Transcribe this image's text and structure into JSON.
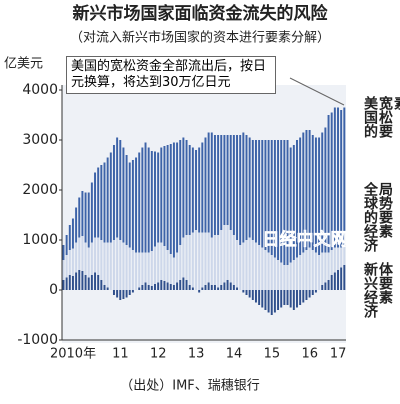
{
  "chart_data": {
    "type": "stacked_bar",
    "title": "新兴市场国家面临资金流失的风险",
    "subtitle": "（对流入新兴市场国家的资本进行要素分解）",
    "y_unit": "亿美元",
    "annotation": "美国的宽松资金全部流出后，按日元换算，将达到30万亿日元",
    "source": "（出处）IMF、瑞穗银行",
    "watermark": "日经中文网",
    "ylim": [
      -1000,
      4000
    ],
    "yticks": [
      4000,
      3000,
      2000,
      1000,
      0,
      -1000
    ],
    "categories": [
      null,
      null,
      null,
      "2010年",
      null,
      null,
      null,
      null,
      null,
      null,
      null,
      null,
      null,
      null,
      null,
      null,
      null,
      null,
      "11",
      null,
      null,
      null,
      null,
      null,
      null,
      null,
      null,
      null,
      null,
      null,
      "12",
      null,
      null,
      null,
      null,
      null,
      null,
      null,
      null,
      null,
      null,
      null,
      "13",
      null,
      null,
      null,
      null,
      null,
      null,
      null,
      null,
      null,
      null,
      null,
      "14",
      null,
      null,
      null,
      null,
      null,
      null,
      null,
      null,
      null,
      null,
      null,
      "15",
      null,
      null,
      null,
      null,
      null,
      null,
      null,
      null,
      null,
      null,
      null,
      "16",
      null,
      null,
      null,
      null,
      null,
      null,
      null,
      null,
      "17",
      null,
      null
    ],
    "series": [
      {
        "name": "新兴经济体要素",
        "color": "#2f4f8c",
        "values": [
          200,
          250,
          300,
          280,
          350,
          400,
          380,
          300,
          250,
          300,
          350,
          300,
          200,
          100,
          50,
          0,
          -100,
          -150,
          -200,
          -180,
          -150,
          -100,
          -50,
          0,
          50,
          100,
          150,
          100,
          80,
          120,
          150,
          200,
          180,
          150,
          120,
          100,
          150,
          200,
          250,
          200,
          100,
          50,
          0,
          -50,
          50,
          100,
          150,
          100,
          100,
          50,
          100,
          150,
          200,
          150,
          100,
          50,
          0,
          -50,
          -100,
          -150,
          -200,
          -250,
          -300,
          -350,
          -400,
          -450,
          -500,
          -450,
          -400,
          -350,
          -300,
          -300,
          -350,
          -400,
          -350,
          -300,
          -250,
          -200,
          -150,
          -100,
          -50,
          0,
          100,
          150,
          200,
          300,
          350,
          400,
          450,
          500
        ]
      },
      {
        "name": "全球的经济局势要素",
        "color": "#cdd7ea",
        "values": [
          400,
          450,
          500,
          550,
          600,
          650,
          700,
          650,
          600,
          650,
          700,
          750,
          800,
          850,
          900,
          950,
          1000,
          1050,
          1000,
          950,
          900,
          850,
          800,
          750,
          700,
          650,
          600,
          650,
          700,
          750,
          800,
          750,
          700,
          650,
          600,
          550,
          600,
          700,
          800,
          900,
          1000,
          1100,
          1200,
          1150,
          1100,
          1050,
          1000,
          950,
          1000,
          1050,
          1100,
          1150,
          1100,
          1050,
          1000,
          950,
          900,
          950,
          1000,
          1050,
          1000,
          950,
          900,
          850,
          800,
          750,
          700,
          650,
          600,
          550,
          500,
          500,
          550,
          600,
          650,
          700,
          750,
          800,
          850,
          800,
          750,
          700,
          650,
          600,
          550,
          500,
          500,
          450,
          400,
          400
        ]
      },
      {
        "name": "美国的宽松要素",
        "color": "#3d63a8",
        "values": [
          300,
          400,
          500,
          600,
          700,
          800,
          900,
          1000,
          1100,
          1200,
          1300,
          1400,
          1500,
          1600,
          1700,
          1800,
          1900,
          2000,
          2000,
          1900,
          1800,
          1700,
          1800,
          1900,
          2000,
          2100,
          2200,
          2100,
          2000,
          1900,
          1800,
          1900,
          2000,
          2100,
          2200,
          2300,
          2200,
          2100,
          2000,
          1900,
          1800,
          1700,
          1600,
          1700,
          1800,
          1900,
          2000,
          2100,
          2000,
          2000,
          1900,
          1800,
          1800,
          1900,
          2000,
          2100,
          2200,
          2200,
          2100,
          2000,
          2000,
          2050,
          2100,
          2150,
          2200,
          2250,
          2300,
          2350,
          2400,
          2450,
          2500,
          2500,
          2300,
          2300,
          2350,
          2350,
          2400,
          2400,
          2350,
          2300,
          2300,
          2350,
          2400,
          2500,
          2750,
          2750,
          2800,
          2800,
          2750,
          2750
        ]
      }
    ]
  }
}
